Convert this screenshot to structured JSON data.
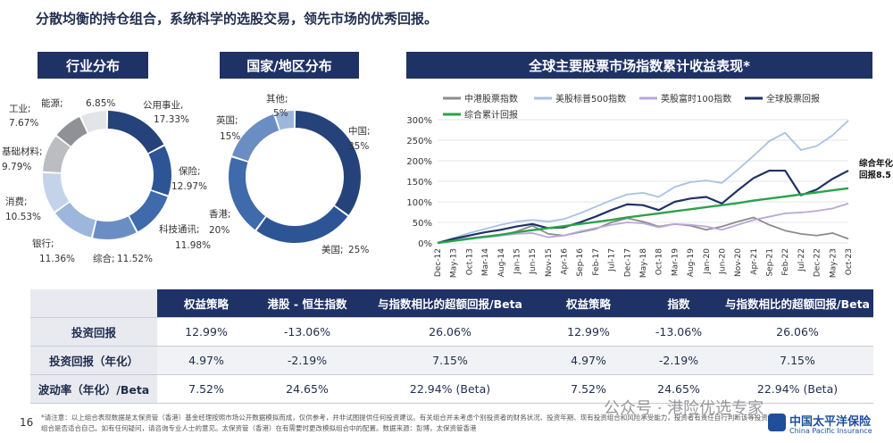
{
  "headline": "分散均衡的持仓组合，系统科学的选股交易，领先市场的优秀回报。",
  "panels": {
    "industry_title": "行业分布",
    "country_title": "国家/地区分布",
    "index_title": "全球主要股票市场指数累计收益表现*"
  },
  "colors": {
    "navy": "#1f3266",
    "donut": [
      "#25437a",
      "#2d5595",
      "#3f6aab",
      "#6a8ec4",
      "#9cb7db",
      "#c3d4ea",
      "#bcbdc1",
      "#8f9196",
      "#e3e4e7"
    ]
  },
  "chart_data": [
    {
      "type": "pie",
      "variant": "donut",
      "categories": [
        "公用事业,",
        "保险;",
        "科技通讯;",
        "综合;",
        "银行;",
        "消费;",
        "基础材料;",
        "工业;",
        "能源;"
      ],
      "value_labels": [
        "17.33%",
        "12.97%",
        "11.98%",
        "11.52%",
        "11.36%",
        "10.53%",
        "9.79%",
        "7.67%",
        "6.85%"
      ],
      "values": [
        17.33,
        12.97,
        11.98,
        11.52,
        11.36,
        10.53,
        9.79,
        7.67,
        6.85
      ]
    },
    {
      "type": "pie",
      "variant": "donut",
      "categories": [
        "中国;",
        "美国;",
        "香港;",
        "英国;",
        "其他;"
      ],
      "value_labels": [
        "35%",
        "25%",
        "20%",
        "15%",
        "5%"
      ],
      "values": [
        35,
        25,
        20,
        15,
        5
      ]
    },
    {
      "type": "line",
      "ylim": [
        0,
        300
      ],
      "y_ticks": [
        "0%",
        "50%",
        "100%",
        "150%",
        "200%",
        "250%",
        "300%"
      ],
      "x": [
        "Dec-12",
        "May-13",
        "Oct-13",
        "Mar-14",
        "Aug-14",
        "Jan-15",
        "Jun-15",
        "Nov-15",
        "Apr-16",
        "Sep-16",
        "Feb-17",
        "Jul-17",
        "Dec-17",
        "May-18",
        "Oct-18",
        "Mar-19",
        "Aug-19",
        "Jan-20",
        "Jun-20",
        "Nov-20",
        "Apr-21",
        "Sep-21",
        "Feb-22",
        "Jul-22",
        "Dec-22",
        "May-23",
        "Oct-23"
      ],
      "legend_placement": "top-left",
      "series": [
        {
          "name": "中港股票指数",
          "color": "#8c8c8c",
          "values": [
            0,
            8,
            12,
            14,
            18,
            28,
            42,
            22,
            18,
            26,
            34,
            50,
            60,
            52,
            40,
            46,
            42,
            32,
            40,
            52,
            62,
            44,
            30,
            22,
            18,
            24,
            10
          ]
        },
        {
          "name": "美股标普500指数",
          "color": "#a9c2e2",
          "values": [
            0,
            12,
            24,
            34,
            44,
            52,
            56,
            52,
            58,
            72,
            88,
            104,
            118,
            122,
            112,
            136,
            148,
            152,
            146,
            178,
            212,
            248,
            268,
            226,
            236,
            262,
            298
          ]
        },
        {
          "name": "英股富时100指数",
          "color": "#b9a8d6",
          "values": [
            0,
            8,
            12,
            16,
            18,
            22,
            24,
            14,
            18,
            28,
            36,
            44,
            50,
            48,
            38,
            46,
            44,
            40,
            32,
            44,
            56,
            64,
            72,
            74,
            78,
            84,
            96
          ]
        },
        {
          "name": "全球股票回报",
          "color": "#1f3266",
          "values": [
            0,
            10,
            18,
            26,
            32,
            40,
            46,
            36,
            38,
            50,
            64,
            80,
            94,
            92,
            80,
            100,
            108,
            112,
            96,
            128,
            158,
            176,
            176,
            116,
            130,
            156,
            176
          ]
        },
        {
          "name": "综合累计回报",
          "color": "#2aa34a",
          "values": [
            0,
            5,
            10,
            15,
            20,
            26,
            31,
            36,
            41,
            46,
            51,
            56,
            62,
            67,
            72,
            77,
            82,
            87,
            92,
            97,
            103,
            108,
            113,
            118,
            123,
            128,
            133
          ]
        }
      ],
      "end_annotation": [
        "综合年化",
        "回报8.5"
      ]
    }
  ],
  "table": {
    "headers": [
      "",
      "权益策略",
      "港股 - 恒生指数",
      "与指数相比的超额回报/Beta",
      "权益策略",
      "指数",
      "与指数相比的超额回报/Beta"
    ],
    "rows": [
      {
        "label": "投资回报",
        "cells": [
          "12.99%",
          "-13.06%",
          "26.06%",
          "12.99%",
          "-13.06%",
          "26.06%"
        ]
      },
      {
        "label": "投资回报（年化）",
        "cells": [
          "4.97%",
          "-2.19%",
          "7.15%",
          "4.97%",
          "-2.19%",
          "7.15%"
        ]
      },
      {
        "label": "波动率（年化）/Beta",
        "cells": [
          "7.52%",
          "24.65%",
          "22.94% (Beta)",
          "7.52%",
          "24.65%",
          "22.94% (Beta)"
        ]
      }
    ]
  },
  "page_number": "16",
  "footnote": "*请注意：以上组合表现数据是太保资管（香港）基金经理按照市场公开数据模拟而成，仅供参考，并非试图提供任何投资建议。有关组合并未考虑个别投资者的财务状况、投资年期、现有投资组合和风险承受能力，投资者有责任自行判断该等投资组合是否适合自己。如有任何疑问，请咨询专业人士的意见。太保资管（香港）在有需要时更改模拟组合中的配置。数据来源：彭博，太保资管香港",
  "watermark": "公众号 · 港险优选专家",
  "brand": {
    "cn": "中国太平洋保险",
    "en": "China Pacific Insurance"
  }
}
